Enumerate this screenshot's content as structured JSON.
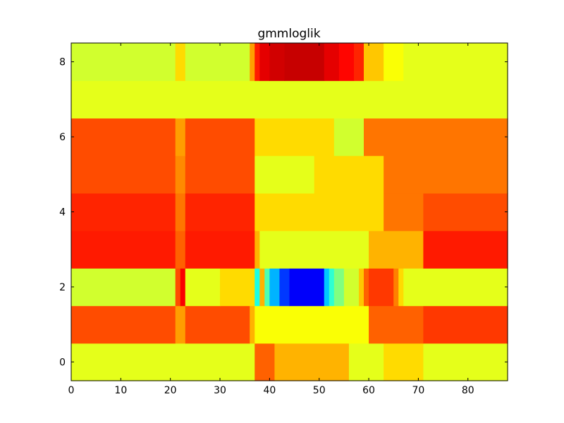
{
  "chart_data": {
    "type": "heatmap",
    "title": "gmmloglik",
    "xlabel": "",
    "ylabel": "",
    "colormap": "jet",
    "color_scale": [
      0,
      1
    ],
    "xlim": [
      0,
      88
    ],
    "ylim": [
      -0.5,
      8.5
    ],
    "xticks": [
      "0",
      "10",
      "20",
      "30",
      "40",
      "50",
      "60",
      "70",
      "80"
    ],
    "yticks": [
      "0",
      "2",
      "4",
      "6",
      "8"
    ],
    "n_columns": 88,
    "rows": [
      {
        "y": 0,
        "segments": [
          [
            0,
            36,
            0.6
          ],
          [
            37,
            40,
            0.78
          ],
          [
            41,
            55,
            0.7
          ],
          [
            56,
            62,
            0.6
          ],
          [
            63,
            70,
            0.66
          ],
          [
            71,
            87,
            0.6
          ]
        ]
      },
      {
        "y": 1,
        "segments": [
          [
            0,
            20,
            0.8
          ],
          [
            21,
            22,
            0.72
          ],
          [
            23,
            35,
            0.8
          ],
          [
            36,
            36,
            0.7
          ],
          [
            37,
            59,
            0.62
          ],
          [
            60,
            70,
            0.78
          ],
          [
            71,
            87,
            0.82
          ]
        ]
      },
      {
        "y": 2,
        "segments": [
          [
            0,
            20,
            0.58
          ],
          [
            21,
            21,
            0.8
          ],
          [
            22,
            22,
            0.88
          ],
          [
            23,
            29,
            0.6
          ],
          [
            30,
            36,
            0.66
          ],
          [
            37,
            37,
            0.4
          ],
          [
            38,
            38,
            0.7
          ],
          [
            39,
            39,
            0.45
          ],
          [
            40,
            41,
            0.3
          ],
          [
            42,
            43,
            0.18
          ],
          [
            44,
            50,
            0.12
          ],
          [
            51,
            51,
            0.32
          ],
          [
            52,
            52,
            0.42
          ],
          [
            53,
            54,
            0.5
          ],
          [
            55,
            57,
            0.58
          ],
          [
            58,
            58,
            0.68
          ],
          [
            59,
            59,
            0.78
          ],
          [
            60,
            64,
            0.82
          ],
          [
            65,
            65,
            0.75
          ],
          [
            66,
            66,
            0.66
          ],
          [
            67,
            87,
            0.6
          ]
        ]
      },
      {
        "y": 3,
        "segments": [
          [
            0,
            20,
            0.85
          ],
          [
            21,
            22,
            0.78
          ],
          [
            23,
            36,
            0.85
          ],
          [
            37,
            37,
            0.7
          ],
          [
            38,
            59,
            0.6
          ],
          [
            60,
            70,
            0.7
          ],
          [
            71,
            87,
            0.85
          ]
        ]
      },
      {
        "y": 4,
        "segments": [
          [
            0,
            20,
            0.84
          ],
          [
            21,
            22,
            0.76
          ],
          [
            23,
            36,
            0.84
          ],
          [
            37,
            62,
            0.66
          ],
          [
            63,
            70,
            0.76
          ],
          [
            71,
            87,
            0.8
          ]
        ]
      },
      {
        "y": 5,
        "segments": [
          [
            0,
            20,
            0.8
          ],
          [
            21,
            22,
            0.74
          ],
          [
            23,
            36,
            0.8
          ],
          [
            37,
            48,
            0.6
          ],
          [
            49,
            62,
            0.66
          ],
          [
            63,
            87,
            0.76
          ]
        ]
      },
      {
        "y": 6,
        "segments": [
          [
            0,
            20,
            0.8
          ],
          [
            21,
            22,
            0.72
          ],
          [
            23,
            36,
            0.8
          ],
          [
            37,
            52,
            0.66
          ],
          [
            53,
            58,
            0.58
          ],
          [
            59,
            87,
            0.76
          ]
        ]
      },
      {
        "y": 7,
        "segments": [
          [
            0,
            87,
            0.6
          ]
        ]
      },
      {
        "y": 8,
        "segments": [
          [
            0,
            20,
            0.58
          ],
          [
            21,
            22,
            0.66
          ],
          [
            23,
            35,
            0.58
          ],
          [
            36,
            36,
            0.72
          ],
          [
            37,
            37,
            0.85
          ],
          [
            38,
            39,
            0.9
          ],
          [
            40,
            42,
            0.92
          ],
          [
            43,
            50,
            0.93
          ],
          [
            51,
            53,
            0.9
          ],
          [
            54,
            56,
            0.87
          ],
          [
            57,
            58,
            0.84
          ],
          [
            59,
            62,
            0.68
          ],
          [
            63,
            66,
            0.62
          ],
          [
            67,
            87,
            0.6
          ]
        ]
      }
    ]
  }
}
